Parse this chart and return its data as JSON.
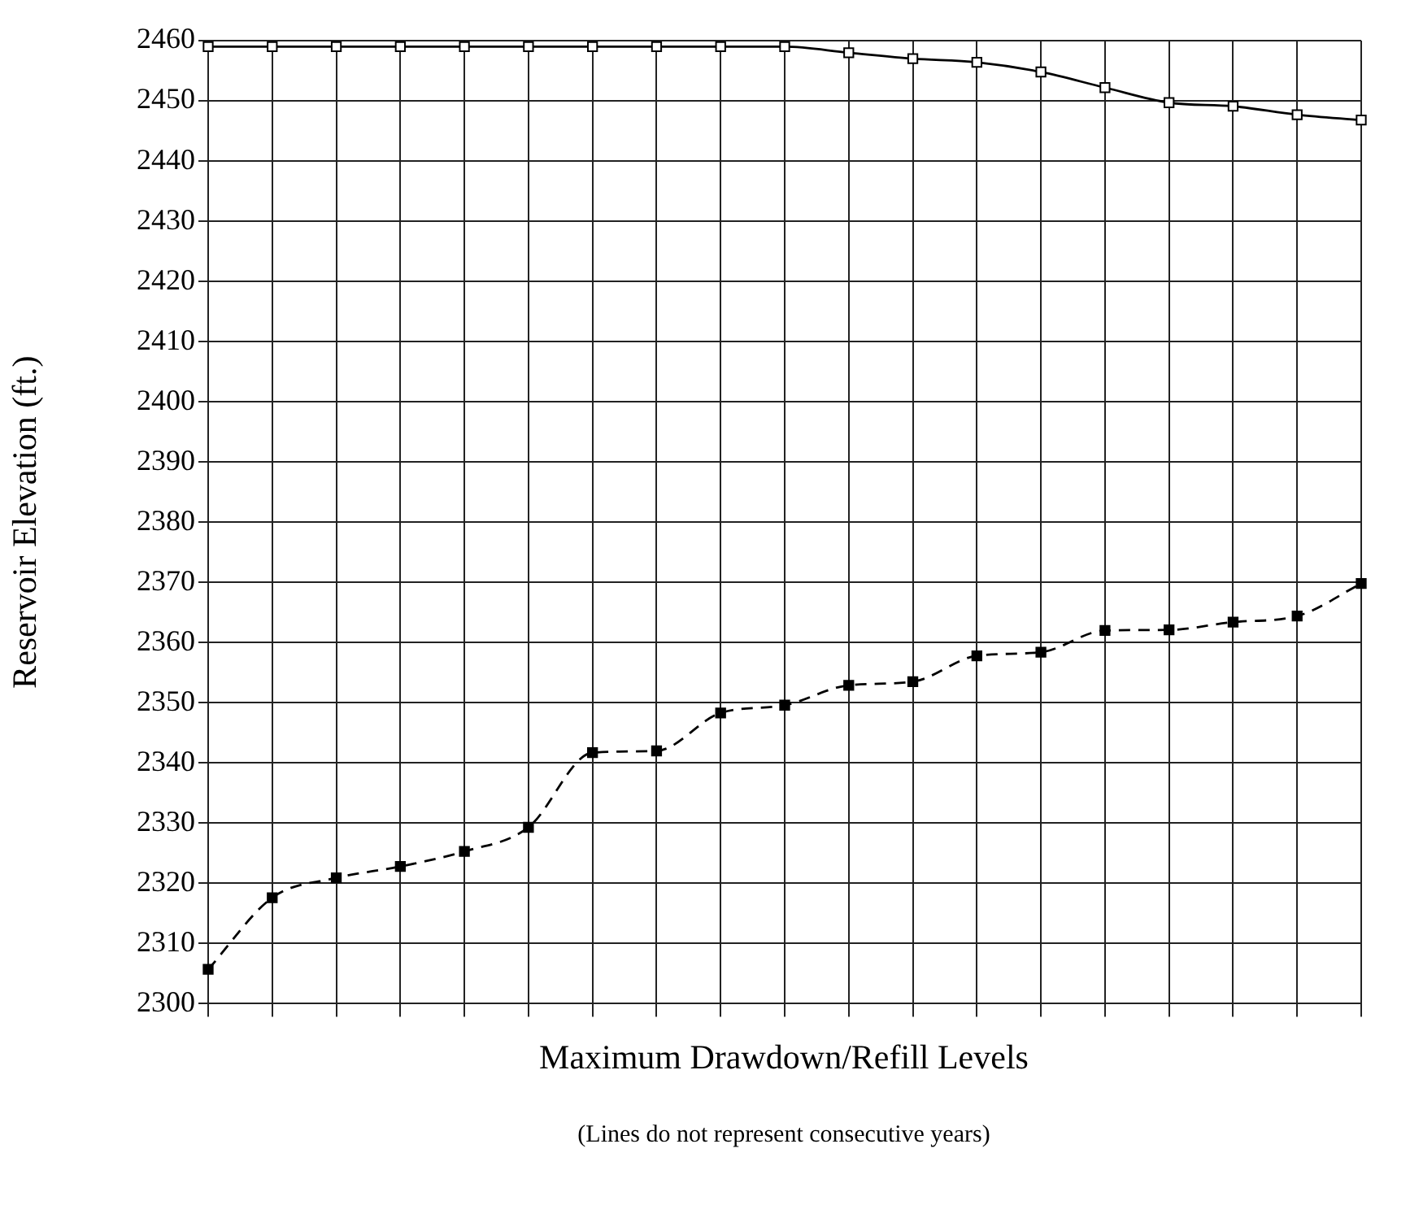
{
  "chart_data": {
    "type": "line",
    "xlabel": "Maximum Drawdown/Refill Levels",
    "ylabel": "Reservoir Elevation (ft.)",
    "annotations": [
      "(Lines do not represent consecutive years)"
    ],
    "categories": [
      null,
      null,
      null,
      null,
      null,
      null,
      null,
      null,
      null,
      null,
      null,
      null,
      null,
      null,
      null,
      null,
      null,
      null,
      null
    ],
    "series": [
      {
        "color": "#000000",
        "line_style": "solid",
        "marker": "square",
        "values": [
          2459,
          2459,
          2459,
          2459,
          2459,
          2459,
          2459,
          2459,
          2459,
          2459,
          2458,
          2457,
          2456.4,
          2454.8,
          2452.2,
          2449.7,
          2449.1,
          2447.7,
          2446.8
        ]
      },
      {
        "color": "#000000",
        "line_style": "dashed",
        "marker": "square",
        "values": [
          2305.7,
          2317.6,
          2320.9,
          2322.8,
          2325.3,
          2329.3,
          2341.7,
          2342,
          2348.3,
          2349.6,
          2352.9,
          2353.5,
          2357.8,
          2358.4,
          2362,
          2362.1,
          2363.4,
          2364.4,
          2369.8
        ]
      }
    ],
    "ylim": [
      2300,
      2460
    ],
    "yticks": [
      2300,
      2310,
      2320,
      2330,
      2340,
      2350,
      2360,
      2370,
      2380,
      2390,
      2400,
      2410,
      2420,
      2430,
      2440,
      2450,
      2460
    ],
    "grid": true,
    "legend": false,
    "tick_labels": "y"
  }
}
